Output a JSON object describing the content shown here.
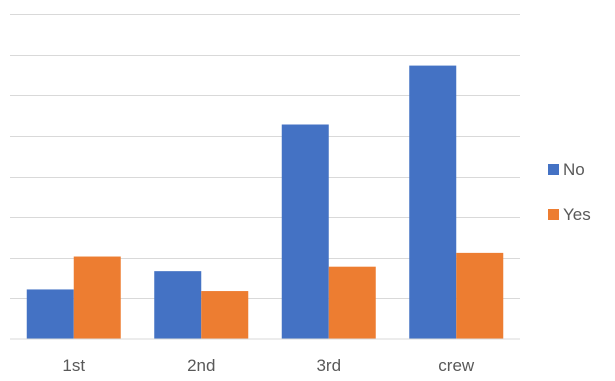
{
  "chart_data": {
    "type": "bar",
    "categories": [
      "1st",
      "2nd",
      "3rd",
      "crew"
    ],
    "series": [
      {
        "name": "No",
        "color": "#4472C4",
        "values": [
          122,
          167,
          528,
          673
        ]
      },
      {
        "name": "Yes",
        "color": "#ED7D31",
        "values": [
          203,
          118,
          178,
          212
        ]
      }
    ],
    "title": "",
    "xlabel": "",
    "ylabel": "",
    "ylim": [
      0,
      800
    ],
    "y_tick_step": 100,
    "y_tick_labels_visible": false,
    "grid": true,
    "legend": "right"
  }
}
